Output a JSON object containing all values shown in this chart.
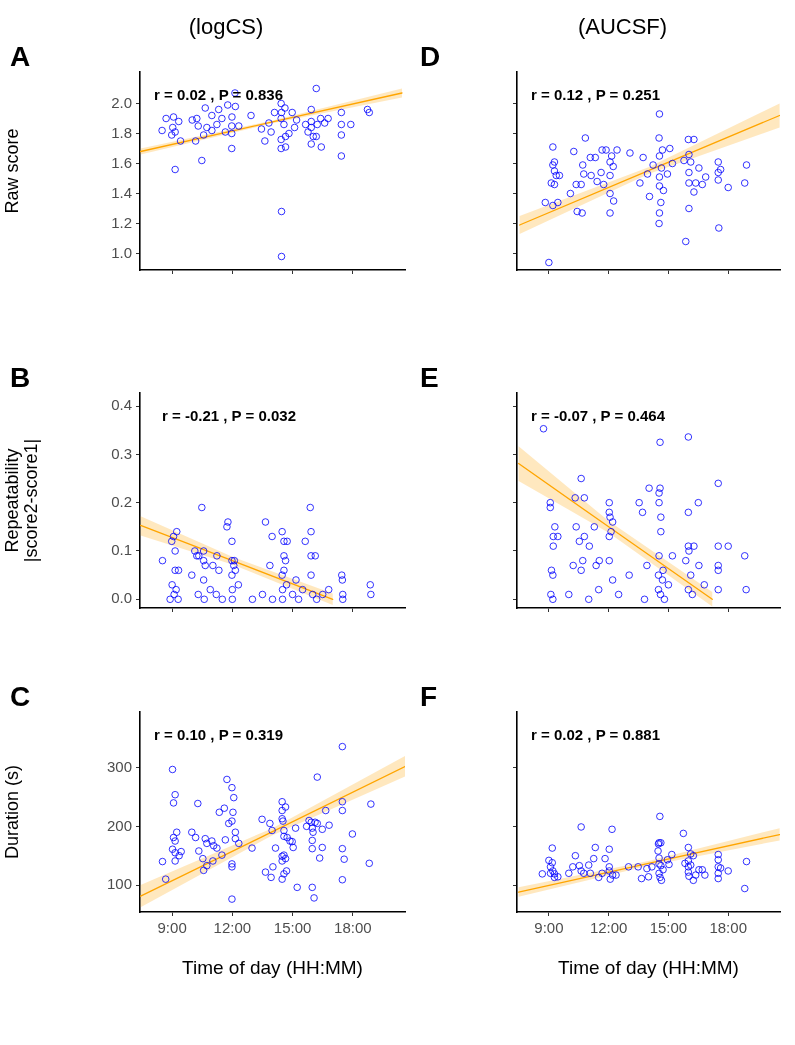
{
  "chart_data": [
    {
      "type": "scatter",
      "title": "(logCS)",
      "ylabel": "Raw score",
      "annotations": [
        "A",
        "r = 0.02 , P = 0.836"
      ],
      "xlim": [
        7.4,
        20.6
      ],
      "xticks": [
        {
          "value": 9,
          "label": null
        },
        {
          "value": 12,
          "label": null
        },
        {
          "value": 15,
          "label": null
        },
        {
          "value": 18,
          "label": null
        }
      ],
      "ylim": [
        0.89,
        2.21
      ],
      "yticks": [
        {
          "value": 1,
          "label": "1.0"
        },
        1.2,
        1.4,
        1.6,
        1.8,
        {
          "value": 2,
          "label": "2.0"
        }
      ],
      "tick_labels": "y",
      "grid": false,
      "legend": false,
      "marker": "circle",
      "series": [
        {
          "color": "#0000ff",
          "x": [
            8.5,
            8.7,
            9.07,
            9.03,
            9.15,
            8.98,
            9.33,
            9.42,
            9.15,
            10.0,
            10.23,
            10.17,
            10.48,
            10.3,
            10.57,
            10.65,
            10.73,
            10.98,
            10.98,
            11.23,
            11.32,
            11.48,
            11.65,
            11.77,
            11.97,
            11.97,
            11.98,
            11.97,
            12.13,
            12.15,
            12.32,
            12.93,
            13.45,
            13.62,
            13.82,
            13.93,
            14.1,
            14.43,
            14.45,
            14.43,
            14.43,
            14.43,
            14.45,
            14.45,
            14.57,
            14.62,
            14.65,
            14.65,
            14.82,
            14.98,
            15.1,
            15.2,
            15.65,
            15.77,
            15.93,
            15.93,
            15.93,
            15.93,
            16.03,
            16.18,
            16.18,
            16.23,
            16.4,
            16.43,
            16.6,
            16.77,
            17.43,
            17.43,
            17.43,
            17.43,
            17.9,
            18.73,
            18.82
          ],
          "values": [
            1.82,
            1.9,
            1.91,
            1.84,
            1.81,
            1.79,
            1.88,
            1.75,
            1.56,
            1.89,
            1.9,
            1.75,
            1.62,
            1.85,
            1.79,
            1.97,
            1.84,
            1.82,
            1.92,
            1.86,
            1.96,
            1.9,
            1.81,
            1.99,
            1.7,
            1.8,
            1.91,
            1.85,
            2.07,
            1.98,
            1.85,
            1.92,
            1.83,
            1.75,
            1.87,
            1.81,
            1.94,
            2.0,
            1.94,
            1.9,
            1.76,
            1.7,
            1.28,
            0.98,
            1.86,
            1.97,
            1.71,
            1.78,
            1.8,
            1.94,
            1.84,
            1.89,
            1.86,
            1.81,
            1.96,
            1.88,
            1.84,
            1.73,
            1.78,
            2.1,
            1.78,
            1.86,
            1.9,
            1.71,
            1.87,
            1.9,
            1.94,
            1.86,
            1.79,
            1.65,
            1.86,
            1.96,
            1.94
          ]
        },
        {
          "type": "line",
          "marker": "none",
          "color": "#ffa500",
          "x": [
            7.43,
            14,
            20.45
          ],
          "values": [
            1.68,
            1.877,
            2.07
          ],
          "lower": [
            1.66,
            1.868,
            2.04
          ],
          "upper": [
            1.7,
            1.886,
            2.1
          ]
        }
      ]
    },
    {
      "type": "scatter",
      "title": "(AUCSF)",
      "annotations": [
        "D",
        "r = 0.12 , P = 0.251"
      ],
      "xlim": [
        7.4,
        20.6
      ],
      "xticks": [
        {
          "value": 9,
          "label": null
        },
        {
          "value": 12,
          "label": null
        },
        {
          "value": 15,
          "label": null
        },
        {
          "value": 18,
          "label": null
        }
      ],
      "ylim": [
        0.89,
        2.21
      ],
      "yticks": [
        {
          "value": 1,
          "label": null
        },
        {
          "value": 1.2,
          "label": null
        },
        {
          "value": 1.4,
          "label": null
        },
        {
          "value": 1.6,
          "label": null
        },
        {
          "value": 1.8,
          "label": null
        },
        {
          "value": 2,
          "label": null
        }
      ],
      "tick_labels": false,
      "grid": false,
      "legend": false,
      "marker": "circle",
      "series": [
        {
          "color": "#0000ff",
          "x": [
            9.2,
            9.2,
            9.28,
            9.28,
            9.37,
            9.12,
            9.28,
            8.82,
            9.2,
            9.45,
            9.53,
            10.08,
            10.25,
            10.37,
            10.42,
            10.62,
            10.67,
            10.7,
            10.75,
            10.83,
            11.08,
            11.12,
            11.33,
            11.42,
            11.62,
            11.67,
            11.75,
            11.87,
            12.07,
            12.07,
            12.07,
            12.07,
            12.15,
            12.23,
            12.25,
            12.42,
            13.07,
            13.57,
            13.73,
            13.95,
            14.05,
            14.23,
            14.55,
            14.53,
            14.55,
            14.55,
            14.55,
            14.62,
            14.55,
            14.53,
            14.65,
            14.7,
            14.75,
            14.95,
            15.07,
            15.2,
            15.78,
            15.87,
            16.0,
            16.03,
            16.03,
            16.03,
            16.03,
            16.12,
            16.28,
            16.28,
            16.37,
            16.53,
            16.7,
            16.87,
            17.5,
            17.5,
            17.5,
            17.53,
            17.62,
            18.0,
            18.83,
            18.92,
            9.0
          ],
          "values": [
            1.71,
            1.59,
            1.61,
            1.55,
            1.52,
            1.47,
            1.46,
            1.34,
            1.32,
            1.34,
            1.52,
            1.4,
            1.68,
            1.46,
            1.28,
            1.46,
            1.27,
            1.59,
            1.53,
            1.77,
            1.64,
            1.52,
            1.64,
            1.48,
            1.54,
            1.69,
            1.46,
            1.69,
            1.61,
            1.52,
            1.4,
            1.27,
            1.65,
            1.58,
            1.35,
            1.69,
            1.67,
            1.47,
            1.64,
            1.53,
            1.38,
            1.59,
            1.93,
            1.77,
            1.65,
            1.51,
            1.45,
            1.34,
            1.27,
            1.2,
            1.57,
            1.69,
            1.42,
            1.53,
            1.7,
            1.6,
            1.62,
            1.08,
            1.76,
            1.66,
            1.54,
            1.47,
            1.3,
            1.61,
            1.76,
            1.41,
            1.47,
            1.57,
            1.46,
            1.51,
            1.61,
            1.54,
            1.49,
            1.17,
            1.56,
            1.44,
            1.47,
            1.59,
            0.94
          ]
        },
        {
          "type": "line",
          "marker": "none",
          "color": "#ffa500",
          "x": [
            7.53,
            14,
            20.58
          ],
          "values": [
            1.19,
            1.552,
            1.92
          ],
          "lower": [
            1.13,
            1.53,
            1.84
          ],
          "upper": [
            1.25,
            1.575,
            2.0
          ]
        }
      ]
    },
    {
      "type": "scatter",
      "ylabel": "Repeatability\n|score2-score1|",
      "annotations": [
        "B",
        "r = -0.21 , P = 0.032"
      ],
      "xlim": [
        7.4,
        20.6
      ],
      "xticks": [
        {
          "value": 9,
          "label": null
        },
        {
          "value": 12,
          "label": null
        },
        {
          "value": 15,
          "label": null
        },
        {
          "value": 18,
          "label": null
        }
      ],
      "ylim": [
        -0.018,
        0.427
      ],
      "yticks": [
        {
          "value": 0,
          "label": "0.0"
        },
        0.1,
        0.2,
        0.3,
        0.4
      ],
      "tick_labels": "y",
      "grid": false,
      "legend": false,
      "marker": "circle",
      "series": [
        {
          "color": "#0000ff",
          "x": [
            8.52,
            8.98,
            9.07,
            9.23,
            9.15,
            9.15,
            9.32,
            9.98,
            10.13,
            10.23,
            10.33,
            10.48,
            10.57,
            10.57,
            10.65,
            10.57,
            11.03,
            11.23,
            11.33,
            11.73,
            11.78,
            11.98,
            11.98,
            12.1,
            12.07,
            12.15,
            11.98,
            13.65,
            13.87,
            13.98,
            14.48,
            14.57,
            14.73,
            14.57,
            14.65,
            14.48,
            14.57,
            15.17,
            15.63,
            15.88,
            15.92,
            15.92,
            16.13,
            15.92,
            17.45,
            17.48,
            18.87,
            9.0,
            9.1,
            9.2,
            9.3,
            10.3,
            10.6,
            10.9,
            11.2,
            11.5,
            12.0,
            12.0,
            12.3,
            13.0,
            13.5,
            14.0,
            14.5,
            14.5,
            14.7,
            15.0,
            15.3,
            15.5,
            16.0,
            16.2,
            16.5,
            16.8,
            17.5,
            17.5,
            18.9,
            8.9
          ],
          "values": [
            0.08,
            0.12,
            0.13,
            0.14,
            0.1,
            0.06,
            0.06,
            0.05,
            0.1,
            0.09,
            0.09,
            0.19,
            0.1,
            0.08,
            0.07,
            0.04,
            0.07,
            0.09,
            0.06,
            0.15,
            0.16,
            0.12,
            0.08,
            0.08,
            0.07,
            0.06,
            0.05,
            0.16,
            0.07,
            0.13,
            0.14,
            0.12,
            0.12,
            0.09,
            0.08,
            0.05,
            0.06,
            0.04,
            0.12,
            0.19,
            0.14,
            0.09,
            0.09,
            0.05,
            0.05,
            0.04,
            0.03,
            0.03,
            0.01,
            0.02,
            0.0,
            0.01,
            0.0,
            0.02,
            0.01,
            0.0,
            0.02,
            0.0,
            0.03,
            0.0,
            0.01,
            0.0,
            0.02,
            0.0,
            0.03,
            0.01,
            0.0,
            0.02,
            0.01,
            0.0,
            0.01,
            0.02,
            0.01,
            0.0,
            0.01,
            0.0
          ]
        },
        {
          "type": "line",
          "marker": "none",
          "color": "#ffa500",
          "x": [
            7.43,
            12,
            17.0
          ],
          "values": [
            0.153,
            0.08,
            0.0
          ],
          "lower": [
            0.132,
            0.072,
            -0.012
          ],
          "upper": [
            0.172,
            0.088,
            0.012
          ]
        }
      ]
    },
    {
      "type": "scatter",
      "annotations": [
        "E",
        "r = -0.07 , P = 0.464"
      ],
      "xlim": [
        7.4,
        20.6
      ],
      "xticks": [
        {
          "value": 9,
          "label": null
        },
        {
          "value": 12,
          "label": null
        },
        {
          "value": 15,
          "label": null
        },
        {
          "value": 18,
          "label": null
        }
      ],
      "ylim": [
        -0.018,
        0.427
      ],
      "yticks": [
        {
          "value": 0,
          "label": null
        },
        {
          "value": 0.1,
          "label": null
        },
        {
          "value": 0.2,
          "label": null
        },
        {
          "value": 0.3,
          "label": null
        },
        {
          "value": 0.4,
          "label": null
        }
      ],
      "tick_labels": false,
      "grid": false,
      "legend": false,
      "marker": "circle",
      "series": [
        {
          "color": "#0000ff",
          "x": [
            8.73,
            9.07,
            9.07,
            9.3,
            9.22,
            9.22,
            9.45,
            9.13,
            9.2,
            10.32,
            10.37,
            10.53,
            10.62,
            10.78,
            10.78,
            11.03,
            11.28,
            10.7,
            10.62,
            11.37,
            11.53,
            10.22,
            12.03,
            12.03,
            12.07,
            12.2,
            12.12,
            12.03,
            12.03,
            12.2,
            13.03,
            13.53,
            13.7,
            14.03,
            13.92,
            14.53,
            14.58,
            14.53,
            14.62,
            14.62,
            14.53,
            14.58,
            14.73,
            14.5,
            15.2,
            16.0,
            16.0,
            16.0,
            16.03,
            15.87,
            16.12,
            16.28,
            16.5,
            16.53,
            17.5,
            17.5,
            17.5,
            17.5,
            18.0,
            18.83,
            9.1,
            9.2,
            10.0,
            11.0,
            11.5,
            12.5,
            13.8,
            14.5,
            14.6,
            14.8,
            15.0,
            16.0,
            16.2,
            16.8,
            17.5,
            18.9,
            14.7
          ],
          "values": [
            0.353,
            0.2,
            0.19,
            0.15,
            0.13,
            0.11,
            0.13,
            0.06,
            0.05,
            0.21,
            0.15,
            0.12,
            0.25,
            0.21,
            0.13,
            0.11,
            0.15,
            0.08,
            0.06,
            0.07,
            0.08,
            0.07,
            0.2,
            0.18,
            0.17,
            0.16,
            0.14,
            0.13,
            0.08,
            0.04,
            0.05,
            0.2,
            0.18,
            0.23,
            0.07,
            0.22,
            0.23,
            0.2,
            0.17,
            0.14,
            0.09,
            0.325,
            0.06,
            0.05,
            0.09,
            0.336,
            0.18,
            0.11,
            0.1,
            0.08,
            0.05,
            0.11,
            0.2,
            0.07,
            0.24,
            0.11,
            0.07,
            0.06,
            0.11,
            0.09,
            0.01,
            0.0,
            0.01,
            0.0,
            0.02,
            0.01,
            0.0,
            0.02,
            0.01,
            0.0,
            0.03,
            0.02,
            0.01,
            0.03,
            0.02,
            0.02,
            0.04
          ]
        },
        {
          "type": "line",
          "marker": "none",
          "color": "#ffa500",
          "x": [
            7.48,
            12,
            17.2
          ],
          "values": [
            0.281,
            0.15,
            0.0
          ],
          "lower": [
            0.245,
            0.138,
            -0.015
          ],
          "upper": [
            0.317,
            0.162,
            0.015
          ]
        }
      ]
    },
    {
      "type": "scatter",
      "xlabel": "Time of day (HH:MM)",
      "ylabel": "Duration (s)",
      "annotations": [
        "C",
        "r = 0.10 , P = 0.319"
      ],
      "xlim": [
        7.4,
        20.6
      ],
      "xticks": [
        {
          "value": 9,
          "label": "9:00"
        },
        {
          "value": 12,
          "label": "12:00"
        },
        {
          "value": 15,
          "label": "15:00"
        },
        {
          "value": 18,
          "label": "18:00"
        }
      ],
      "ylim": [
        54,
        395
      ],
      "yticks": [
        100,
        200,
        300
      ],
      "grid": false,
      "legend": false,
      "marker": "circle",
      "series": [
        {
          "color": "#0000ff",
          "x": [
            8.52,
            8.68,
            9.02,
            9.15,
            9.07,
            9.23,
            9.07,
            9.15,
            9.02,
            9.15,
            9.15,
            9.35,
            9.45,
            9.98,
            10.17,
            10.28,
            10.33,
            10.53,
            10.57,
            10.65,
            10.73,
            10.73,
            10.98,
            11.03,
            11.07,
            11.23,
            11.35,
            11.48,
            11.6,
            11.65,
            11.73,
            11.82,
            11.98,
            11.98,
            12.03,
            12.07,
            11.98,
            11.98,
            11.98,
            12.15,
            12.15,
            12.32,
            12.98,
            13.48,
            13.65,
            13.87,
            13.93,
            13.98,
            14.02,
            14.15,
            14.48,
            14.48,
            14.48,
            14.52,
            14.57,
            14.57,
            14.48,
            14.57,
            14.48,
            14.65,
            14.65,
            14.57,
            14.48,
            14.7,
            14.73,
            14.87,
            14.98,
            15.03,
            15.15,
            15.23,
            15.7,
            15.82,
            15.93,
            15.98,
            16.02,
            15.98,
            15.98,
            15.98,
            16.07,
            16.12,
            16.23,
            16.23,
            16.35,
            16.48,
            16.48,
            16.65,
            16.82,
            17.48,
            17.48,
            17.48,
            17.48,
            17.57,
            17.48,
            17.98,
            18.82,
            18.9
          ],
          "values": [
            140,
            110,
            297,
            254,
            240,
            190,
            181,
            175,
            161,
            155,
            141,
            150,
            157,
            190,
            181,
            239,
            158,
            145,
            125,
            179,
            171,
            133,
            175,
            141,
            167,
            163,
            224,
            151,
            231,
            177,
            280,
            205,
            266,
            209,
            224,
            249,
            136,
            131,
            76,
            190,
            179,
            171,
            163,
            212,
            122,
            205,
            113,
            193,
            131,
            163,
            242,
            227,
            213,
            209,
            193,
            183,
            149,
            151,
            141,
            145,
            233,
            119,
            110,
            124,
            181,
            175,
            174,
            164,
            197,
            96,
            200,
            210,
            207,
            197,
            190,
            176,
            162,
            96,
            78,
            207,
            205,
            284,
            146,
            195,
            164,
            227,
            202,
            336,
            242,
            227,
            162,
            144,
            109,
            187,
            137,
            238
          ]
        },
        {
          "type": "line",
          "marker": "none",
          "color": "#ffa500",
          "x": [
            7.43,
            14,
            20.6
          ],
          "values": [
            81,
            191,
            302
          ],
          "lower": [
            62,
            185,
            285
          ],
          "upper": [
            100,
            197,
            320
          ]
        }
      ]
    },
    {
      "type": "scatter",
      "xlabel": "Time of day (HH:MM)",
      "annotations": [
        "F",
        "r = 0.02 , P = 0.881"
      ],
      "xlim": [
        7.4,
        20.6
      ],
      "xticks": [
        {
          "value": 9,
          "label": "9:00"
        },
        {
          "value": 12,
          "label": "12:00"
        },
        {
          "value": 15,
          "label": "15:00"
        },
        {
          "value": 18,
          "label": "18:00"
        }
      ],
      "ylim": [
        54,
        395
      ],
      "yticks": [
        {
          "value": 100,
          "label": null
        },
        {
          "value": 200,
          "label": null
        },
        {
          "value": 300,
          "label": null
        }
      ],
      "tick_labels": "x",
      "grid": false,
      "legend": false,
      "marker": "circle",
      "series": [
        {
          "color": "#0000ff",
          "x": [
            8.67,
            9.0,
            9.17,
            9.17,
            9.08,
            9.2,
            9.08,
            9.28,
            9.28,
            9.45,
            10.0,
            10.2,
            10.33,
            10.53,
            10.62,
            10.62,
            10.75,
            11.0,
            11.08,
            11.25,
            11.33,
            11.5,
            11.67,
            11.82,
            12.03,
            12.03,
            12.03,
            12.08,
            12.17,
            12.2,
            12.37,
            13.0,
            13.48,
            13.65,
            13.92,
            14.0,
            14.17,
            14.48,
            14.5,
            14.57,
            14.53,
            14.62,
            14.53,
            14.53,
            14.62,
            14.53,
            14.58,
            14.65,
            14.73,
            14.95,
            15.03,
            15.17,
            15.75,
            15.83,
            16.0,
            16.0,
            16.0,
            16.0,
            16.03,
            16.12,
            16.12,
            16.25,
            16.25,
            16.37,
            16.53,
            16.7,
            16.83,
            17.5,
            17.5,
            17.5,
            17.5,
            17.5,
            17.62,
            18.0,
            18.83,
            18.92
          ],
          "values": [
            119,
            142,
            163,
            138,
            131,
            124,
            120,
            119,
            113,
            114,
            120,
            131,
            150,
            133,
            124,
            199,
            120,
            134,
            120,
            145,
            164,
            113,
            120,
            145,
            161,
            131,
            124,
            110,
            195,
            117,
            117,
            131,
            131,
            111,
            128,
            114,
            131,
            158,
            170,
            217,
            172,
            172,
            146,
            136,
            133,
            120,
            113,
            108,
            126,
            143,
            135,
            152,
            188,
            137,
            164,
            141,
            131,
            122,
            115,
            153,
            134,
            150,
            108,
            117,
            126,
            126,
            117,
            152,
            143,
            131,
            120,
            111,
            129,
            124,
            94,
            140
          ]
        },
        {
          "type": "line",
          "marker": "none",
          "color": "#ffa500",
          "x": [
            7.48,
            14,
            20.58
          ],
          "values": [
            88,
            137,
            186
          ],
          "lower": [
            80,
            133,
            176
          ],
          "upper": [
            96,
            141,
            197
          ]
        }
      ]
    }
  ]
}
